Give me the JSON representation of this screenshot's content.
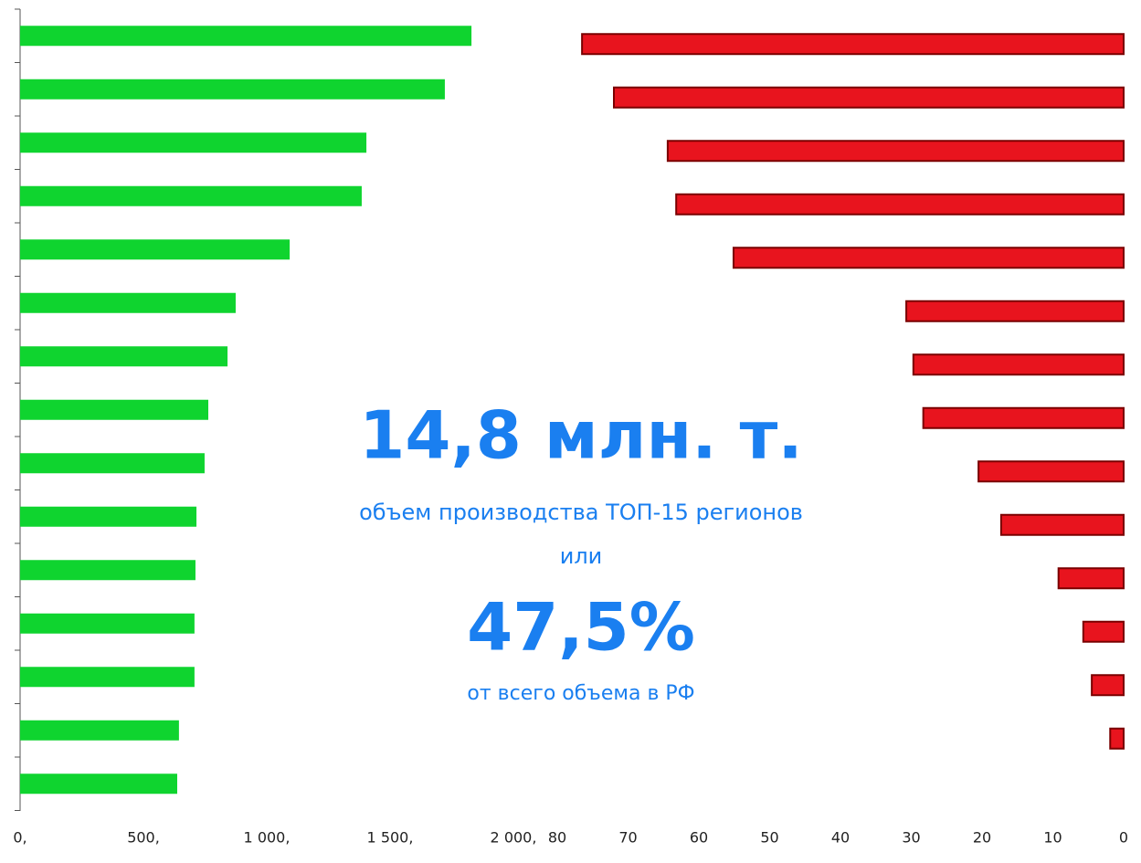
{
  "chart_data": [
    {
      "type": "bar",
      "orientation": "horizontal",
      "color": "#0fd42f",
      "values": [
        1830,
        1722,
        1404,
        1385,
        1093,
        874,
        841,
        763,
        748,
        715,
        711,
        707,
        707,
        644,
        637
      ],
      "xlim": [
        0,
        2000
      ],
      "xticks": [
        {
          "value": 0,
          "label": "0,"
        },
        {
          "value": 500,
          "label": "500,"
        },
        {
          "value": 1000,
          "label": "1 000,"
        },
        {
          "value": 1500,
          "label": "1 500,"
        },
        {
          "value": 2000,
          "label": "2 000,"
        }
      ],
      "annotations": [
        "14,8 млн. т.",
        "объем производства ТОП-15 регионов",
        "или",
        "47,5%",
        "от всего объема в РФ"
      ]
    },
    {
      "type": "bar",
      "orientation": "horizontal",
      "color": "#e8141e",
      "values": [
        76.5,
        72,
        64.4,
        63.2,
        55.1,
        30.7,
        29.7,
        28.3,
        20.5,
        17.3,
        9.2,
        5.7,
        4.5,
        1.9
      ],
      "xlim": [
        80,
        0
      ],
      "xticks": [
        80,
        70,
        60,
        50,
        40,
        30,
        20,
        10,
        0
      ]
    }
  ]
}
